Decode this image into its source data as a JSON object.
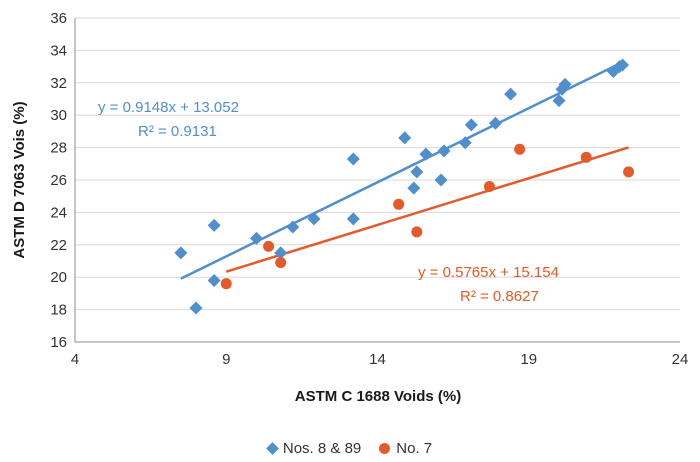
{
  "chart_data": {
    "type": "scatter",
    "xlabel": "ASTM C 1688 Voids (%)",
    "ylabel": "ASTM D 7063 Vois (%)",
    "xlim": [
      4,
      24
    ],
    "ylim": [
      16,
      36
    ],
    "xticks": [
      4,
      9,
      14,
      19,
      24
    ],
    "yticks": [
      16,
      18,
      20,
      22,
      24,
      26,
      28,
      30,
      32,
      34,
      36
    ],
    "grid": "horizontal",
    "legend_position": "bottom",
    "series": [
      {
        "name": "Nos. 8 & 89",
        "marker": "diamond",
        "color": "#4F8FCC",
        "points": [
          [
            7.5,
            21.5
          ],
          [
            8.0,
            18.1
          ],
          [
            8.6,
            23.2
          ],
          [
            8.6,
            19.8
          ],
          [
            10.0,
            22.4
          ],
          [
            10.8,
            21.5
          ],
          [
            11.2,
            23.1
          ],
          [
            11.9,
            23.6
          ],
          [
            13.2,
            27.3
          ],
          [
            13.2,
            23.6
          ],
          [
            14.9,
            28.6
          ],
          [
            15.2,
            25.5
          ],
          [
            15.3,
            26.5
          ],
          [
            15.6,
            27.6
          ],
          [
            16.1,
            26.0
          ],
          [
            16.2,
            27.8
          ],
          [
            16.9,
            28.3
          ],
          [
            17.1,
            29.4
          ],
          [
            17.9,
            29.5
          ],
          [
            18.4,
            31.3
          ],
          [
            20.0,
            30.9
          ],
          [
            20.1,
            31.6
          ],
          [
            20.2,
            31.9
          ],
          [
            21.8,
            32.7
          ],
          [
            22.0,
            33.0
          ],
          [
            22.1,
            33.1
          ]
        ],
        "trendline": {
          "equation": "y = 0.9148x + 13.052",
          "r2": "R² = 0.9131",
          "slope": 0.9148,
          "intercept": 13.052,
          "x_range": [
            7.5,
            22.0
          ]
        }
      },
      {
        "name": "No. 7",
        "marker": "circle",
        "color": "#E35A2B",
        "points": [
          [
            9.0,
            19.6
          ],
          [
            10.4,
            21.9
          ],
          [
            10.8,
            20.9
          ],
          [
            14.7,
            24.5
          ],
          [
            15.3,
            22.8
          ],
          [
            17.7,
            25.6
          ],
          [
            18.7,
            27.9
          ],
          [
            20.9,
            27.4
          ],
          [
            22.3,
            26.5
          ]
        ],
        "trendline": {
          "equation": "y = 0.5765x + 15.154",
          "r2": "R² = 0.8627",
          "slope": 0.5765,
          "intercept": 15.154,
          "x_range": [
            9.0,
            22.3
          ]
        }
      }
    ]
  }
}
